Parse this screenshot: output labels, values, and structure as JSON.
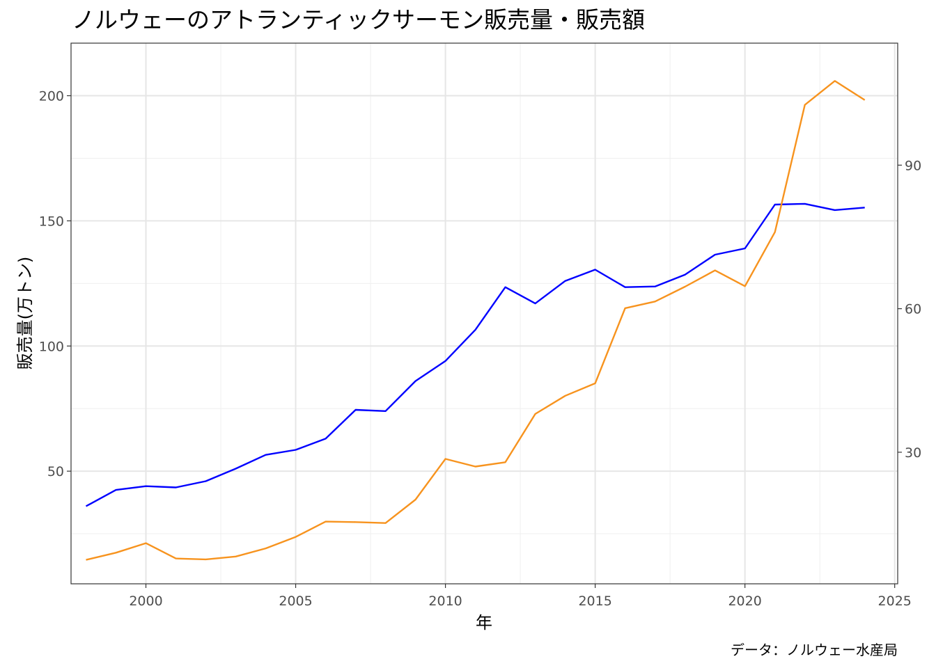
{
  "chart_data": {
    "type": "line",
    "title": "ノルウェーのアトランティックサーモン販売量・販売額",
    "xlabel": "年",
    "ylabel": "販売量(万トン)",
    "y2label": "",
    "caption": "データ：ノルウェー水産局",
    "xlim": [
      1997.5,
      2025.1
    ],
    "ylim": [
      5,
      221
    ],
    "y2lim": [
      2.5,
      115.5
    ],
    "x_ticks": [
      2000,
      2005,
      2010,
      2015,
      2020,
      2025
    ],
    "y_ticks": [
      50,
      100,
      150,
      200
    ],
    "y2_ticks": [
      30,
      60,
      90
    ],
    "x_ticks_text": [
      "2000",
      "2005",
      "2010",
      "2015",
      "2020",
      "2025"
    ],
    "y_ticks_text": [
      "50",
      "100",
      "150",
      "200"
    ],
    "y2_ticks_text": [
      "30",
      "60",
      "90"
    ],
    "grid": true,
    "legend": "none",
    "x": [
      1998,
      1999,
      2000,
      2001,
      2002,
      2003,
      2004,
      2005,
      2006,
      2007,
      2008,
      2009,
      2010,
      2011,
      2012,
      2013,
      2014,
      2015,
      2016,
      2017,
      2018,
      2019,
      2020,
      2021,
      2022,
      2023,
      2024
    ],
    "series": [
      {
        "axis": "left",
        "color": "#0000ff",
        "values": [
          36,
          42.5,
          44,
          43.5,
          46,
          51,
          56.5,
          58.5,
          63,
          74.5,
          74,
          86,
          94,
          106.5,
          123.5,
          117,
          126,
          130.5,
          123.5,
          123.8,
          128.5,
          136.5,
          139,
          156.5,
          156.8,
          154.3,
          155.3
        ]
      },
      {
        "axis": "right",
        "color": "#f7931e",
        "values": [
          7.5,
          9,
          11,
          7.8,
          7.6,
          8.2,
          9.9,
          12.3,
          15.5,
          15.4,
          15.2,
          20.1,
          28.6,
          27,
          27.9,
          38,
          41.8,
          44.4,
          60.1,
          61.5,
          64.6,
          68,
          64.7,
          76,
          102.6,
          107.6,
          103.6
        ]
      }
    ]
  }
}
